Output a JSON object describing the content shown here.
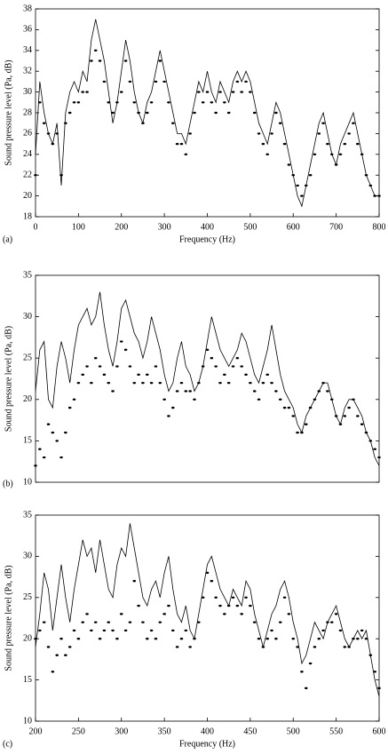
{
  "chart_data": [
    {
      "type": "line",
      "panel_label": "(a)",
      "x_label": "Frequency (Hz)",
      "y_label": "Sound pressure level (Pa, dB)",
      "x": [
        0,
        10,
        20,
        30,
        40,
        50,
        60,
        70,
        80,
        90,
        100,
        110,
        120,
        130,
        140,
        150,
        160,
        170,
        180,
        190,
        200,
        210,
        220,
        230,
        240,
        250,
        260,
        270,
        280,
        290,
        300,
        310,
        320,
        330,
        340,
        350,
        360,
        370,
        380,
        390,
        400,
        410,
        420,
        430,
        440,
        450,
        460,
        470,
        480,
        490,
        500,
        510,
        520,
        530,
        540,
        550,
        560,
        570,
        580,
        590,
        600,
        610,
        620,
        630,
        640,
        650,
        660,
        670,
        680,
        690,
        700,
        710,
        720,
        730,
        740,
        750,
        760,
        770,
        780,
        790,
        800
      ],
      "xlim": [
        0,
        800
      ],
      "xticks": [
        0,
        100,
        200,
        300,
        400,
        500,
        600,
        700,
        800
      ],
      "ylim": [
        18,
        38
      ],
      "yticks": [
        18,
        20,
        22,
        24,
        26,
        28,
        30,
        32,
        34,
        36,
        38
      ],
      "series": [
        {
          "mark": "line",
          "color": "#000000",
          "values": [
            24,
            31,
            28,
            26,
            25,
            27,
            21,
            28,
            30,
            31,
            30,
            32,
            31,
            35,
            37,
            35,
            33,
            30,
            27,
            29,
            32,
            35,
            33,
            30,
            28,
            27,
            29,
            30,
            32,
            34,
            32,
            30,
            28,
            26,
            26,
            25,
            27,
            29,
            31,
            30,
            32,
            30,
            29,
            31,
            30,
            29,
            31,
            32,
            31,
            32,
            31,
            29,
            27,
            26,
            25,
            27,
            29,
            28,
            26,
            24,
            22,
            20,
            19,
            21,
            23,
            25,
            27,
            28,
            26,
            24,
            23,
            25,
            26,
            27,
            28,
            26,
            24,
            22,
            21,
            20,
            20
          ]
        },
        {
          "mark": "dot",
          "color": "#000000",
          "values": [
            22,
            29,
            27,
            26,
            25,
            26,
            22,
            27,
            28,
            29,
            29,
            30,
            30,
            33,
            34,
            33,
            31,
            29,
            28,
            29,
            30,
            33,
            31,
            29,
            28,
            27,
            28,
            29,
            31,
            33,
            31,
            29,
            27,
            25,
            25,
            24,
            26,
            28,
            30,
            29,
            30,
            29,
            28,
            30,
            29,
            28,
            30,
            31,
            30,
            31,
            30,
            28,
            26,
            25,
            24,
            26,
            28,
            27,
            25,
            23,
            22,
            21,
            20,
            21,
            22,
            24,
            26,
            27,
            25,
            24,
            23,
            24,
            25,
            26,
            27,
            25,
            24,
            22,
            21,
            20,
            20
          ]
        }
      ]
    },
    {
      "type": "line",
      "panel_label": "(b)",
      "y_label": "Sound pressure level (Pa, dB)",
      "x": [
        200,
        205,
        210,
        215,
        220,
        225,
        230,
        235,
        240,
        245,
        250,
        255,
        260,
        265,
        270,
        275,
        280,
        285,
        290,
        295,
        300,
        305,
        310,
        315,
        320,
        325,
        330,
        335,
        340,
        345,
        350,
        355,
        360,
        365,
        370,
        375,
        380,
        385,
        390,
        395,
        400,
        405,
        410,
        415,
        420,
        425,
        430,
        435,
        440,
        445,
        450,
        455,
        460,
        465,
        470,
        475,
        480,
        485,
        490,
        495,
        500,
        505,
        510,
        515,
        520,
        525,
        530,
        535,
        540,
        545,
        550,
        555,
        560,
        565,
        570,
        575,
        580,
        585,
        590,
        595,
        600
      ],
      "xlim": [
        200,
        600
      ],
      "ylim": [
        10,
        35
      ],
      "yticks": [
        10,
        15,
        20,
        25,
        30,
        35
      ],
      "series": [
        {
          "mark": "line",
          "color": "#000000",
          "values": [
            21,
            26,
            27,
            20,
            19,
            24,
            27,
            25,
            22,
            26,
            29,
            30,
            31,
            29,
            30,
            33,
            29,
            26,
            24,
            27,
            31,
            32,
            30,
            28,
            27,
            25,
            27,
            30,
            28,
            26,
            23,
            21,
            22,
            25,
            27,
            24,
            23,
            21,
            22,
            24,
            27,
            30,
            28,
            26,
            25,
            24,
            25,
            26,
            28,
            27,
            25,
            23,
            22,
            24,
            26,
            29,
            26,
            23,
            21,
            20,
            19,
            17,
            16,
            18,
            19,
            20,
            21,
            22,
            22,
            20,
            18,
            17,
            19,
            20,
            20,
            19,
            18,
            16,
            15,
            13,
            12
          ]
        },
        {
          "mark": "dot",
          "color": "#000000",
          "values": [
            12,
            14,
            13,
            17,
            16,
            15,
            13,
            16,
            19,
            20,
            22,
            23,
            24,
            22,
            25,
            24,
            23,
            22,
            21,
            24,
            27,
            26,
            24,
            22,
            23,
            22,
            23,
            22,
            24,
            22,
            20,
            18,
            19,
            21,
            22,
            21,
            21,
            20,
            22,
            24,
            26,
            25,
            24,
            22,
            23,
            22,
            24,
            25,
            24,
            23,
            22,
            21,
            20,
            22,
            23,
            22,
            21,
            20,
            19,
            19,
            18,
            16,
            16,
            17,
            19,
            20,
            21,
            22,
            21,
            20,
            18,
            17,
            18,
            19,
            20,
            18,
            17,
            16,
            15,
            14,
            13
          ]
        }
      ]
    },
    {
      "type": "line",
      "panel_label": "(c)",
      "x_label": "Frequency (Hz)",
      "y_label": "Sound pressure level (Pa, dB)",
      "x": [
        200,
        205,
        210,
        215,
        220,
        225,
        230,
        235,
        240,
        245,
        250,
        255,
        260,
        265,
        270,
        275,
        280,
        285,
        290,
        295,
        300,
        305,
        310,
        315,
        320,
        325,
        330,
        335,
        340,
        345,
        350,
        355,
        360,
        365,
        370,
        375,
        380,
        385,
        390,
        395,
        400,
        405,
        410,
        415,
        420,
        425,
        430,
        435,
        440,
        445,
        450,
        455,
        460,
        465,
        470,
        475,
        480,
        485,
        490,
        495,
        500,
        505,
        510,
        515,
        520,
        525,
        530,
        535,
        540,
        545,
        550,
        555,
        560,
        565,
        570,
        575,
        580,
        585,
        590,
        595,
        600
      ],
      "xlim": [
        200,
        600
      ],
      "xticks": [
        200,
        250,
        300,
        350,
        400,
        450,
        500,
        550,
        600
      ],
      "ylim": [
        10,
        35
      ],
      "yticks": [
        10,
        15,
        20,
        25,
        30,
        35
      ],
      "series": [
        {
          "mark": "line",
          "color": "#000000",
          "values": [
            19,
            23,
            28,
            26,
            21,
            25,
            29,
            25,
            22,
            26,
            29,
            32,
            30,
            31,
            28,
            32,
            29,
            26,
            25,
            29,
            31,
            30,
            34,
            31,
            28,
            25,
            24,
            26,
            27,
            25,
            28,
            30,
            26,
            23,
            22,
            24,
            21,
            20,
            23,
            26,
            29,
            30,
            28,
            26,
            25,
            24,
            26,
            25,
            24,
            27,
            26,
            23,
            21,
            19,
            21,
            23,
            24,
            26,
            27,
            25,
            22,
            20,
            17,
            18,
            20,
            22,
            21,
            20,
            22,
            23,
            24,
            22,
            20,
            19,
            20,
            21,
            20,
            21,
            18,
            15,
            13
          ]
        },
        {
          "mark": "dot",
          "color": "#000000",
          "values": [
            20,
            21,
            22,
            19,
            16,
            18,
            20,
            18,
            19,
            21,
            20,
            22,
            23,
            21,
            22,
            20,
            21,
            22,
            21,
            20,
            23,
            21,
            22,
            27,
            24,
            22,
            20,
            21,
            20,
            22,
            23,
            24,
            21,
            19,
            20,
            21,
            19,
            20,
            22,
            25,
            28,
            27,
            25,
            24,
            23,
            24,
            25,
            24,
            23,
            25,
            24,
            22,
            20,
            19,
            20,
            21,
            20,
            22,
            25,
            23,
            20,
            19,
            16,
            14,
            17,
            19,
            20,
            21,
            22,
            22,
            23,
            21,
            19,
            19,
            20,
            20,
            21,
            20,
            18,
            16,
            14
          ]
        }
      ]
    }
  ]
}
